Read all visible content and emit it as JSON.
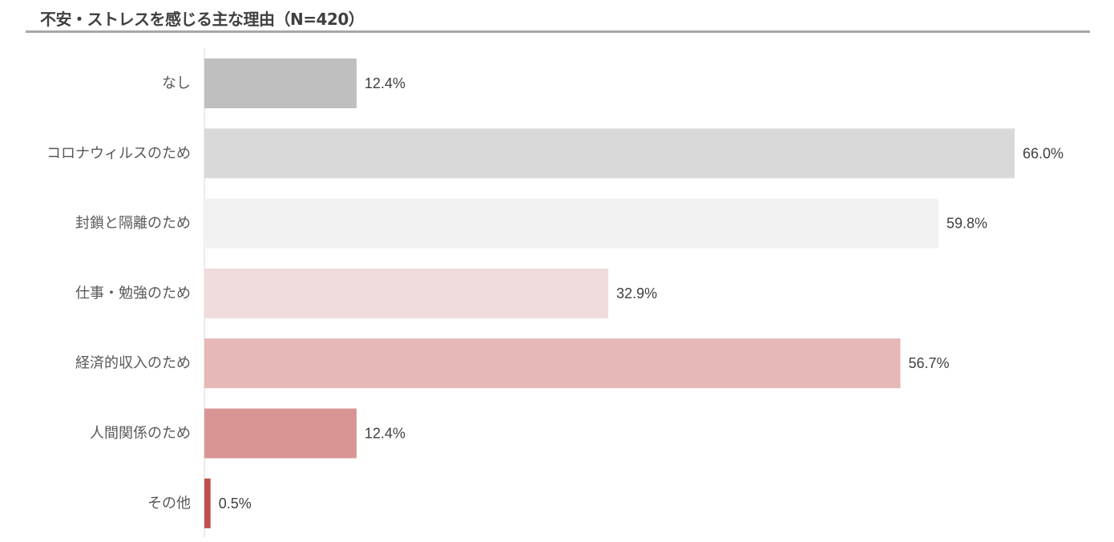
{
  "title": "不安・ストレスを感じる主な理由（N=420）",
  "chart_data": {
    "type": "bar",
    "orientation": "horizontal",
    "title": "不安・ストレスを感じる主な理由（N=420）",
    "categories": [
      "なし",
      "コロナウィルスのため",
      "封鎖と隔離のため",
      "仕事・勉強のため",
      "経済的収入のため",
      "人間関係のため",
      "その他"
    ],
    "values": [
      12.4,
      66.0,
      59.8,
      32.9,
      56.7,
      12.4,
      0.5
    ],
    "value_labels": [
      "12.4%",
      "66.0%",
      "59.8%",
      "32.9%",
      "56.7%",
      "12.4%",
      "0.5%"
    ],
    "bar_colors": [
      "#bfbfbf",
      "#d9d9d9",
      "#f2f2f2",
      "#f0dcdc",
      "#e6b8b8",
      "#d99594",
      "#c0504d"
    ],
    "xlim": [
      0,
      66.0
    ],
    "grid": false,
    "legend": "none"
  }
}
